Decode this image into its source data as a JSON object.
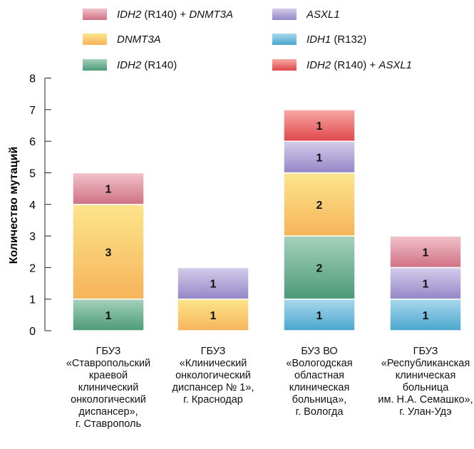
{
  "chart_data": {
    "type": "bar",
    "stacked": true,
    "ylabel": "Количество мутаций",
    "ylim": [
      0,
      8
    ],
    "yticks": [
      "0",
      "1",
      "2",
      "3",
      "4",
      "5",
      "6",
      "7",
      "8"
    ],
    "grid": false,
    "legend_position": "top",
    "categories": [
      [
        "ГБУЗ",
        "«Ставропольский",
        "краевой",
        "клинический",
        "онкологический",
        "диспансер»,",
        "г. Ставрополь"
      ],
      [
        "ГБУЗ",
        "«Клинический",
        "онкологический",
        "диспансер № 1»,",
        "г. Краснодар"
      ],
      [
        "БУЗ ВО",
        "«Вологодская",
        "областная",
        "клиническая",
        "больница»,",
        "г. Вологда"
      ],
      [
        "ГБУЗ",
        "«Республиканская",
        "клиническая",
        "больница",
        "им. Н.А. Семашко»,",
        "г. Улан-Удэ"
      ]
    ],
    "series": [
      {
        "key": "idh1",
        "name": "IDH1 (R132)",
        "name_parts": [
          "IDH1",
          " (R132)"
        ],
        "color_top": "#a9d8ec",
        "color_bottom": "#4aa6cf",
        "values": [
          0,
          0,
          1,
          1
        ]
      },
      {
        "key": "idh2",
        "name": "IDH2 (R140)",
        "name_parts": [
          "IDH2",
          " (R140)"
        ],
        "color_top": "#a5d1bc",
        "color_bottom": "#4c9a77",
        "values": [
          1,
          0,
          2,
          0
        ]
      },
      {
        "key": "dnmt3a",
        "name": "DNMT3A",
        "name_parts": [
          "DNMT3A"
        ],
        "color_top": "#fde58c",
        "color_bottom": "#f6b45a",
        "values": [
          3,
          1,
          2,
          0
        ]
      },
      {
        "key": "asxl1",
        "name": "ASXL1",
        "name_parts": [
          "ASXL1"
        ],
        "color_top": "#d4cdeb",
        "color_bottom": "#9486c7",
        "values": [
          0,
          1,
          1,
          1
        ]
      },
      {
        "key": "idh2_dnmt3a",
        "name": "IDH2 (R140) + DNMT3A",
        "name_parts": [
          "IDH2",
          " (R140) + ",
          "DNMT3A"
        ],
        "color_top": "#f2c2cb",
        "color_bottom": "#cf7184",
        "values": [
          1,
          0,
          0,
          1
        ]
      },
      {
        "key": "idh2_asxl1",
        "name": "IDH2 (R140) + ASXL1",
        "name_parts": [
          "IDH2",
          " (R140) + ",
          "ASXL1"
        ],
        "color_top": "#f9aaa6",
        "color_bottom": "#e0464a",
        "values": [
          0,
          0,
          1,
          0
        ]
      }
    ],
    "legend_order": [
      "idh2_dnmt3a",
      "asxl1",
      "dnmt3a",
      "idh1",
      "idh2",
      "idh2_asxl1"
    ],
    "italic_parts": [
      0,
      2
    ]
  }
}
